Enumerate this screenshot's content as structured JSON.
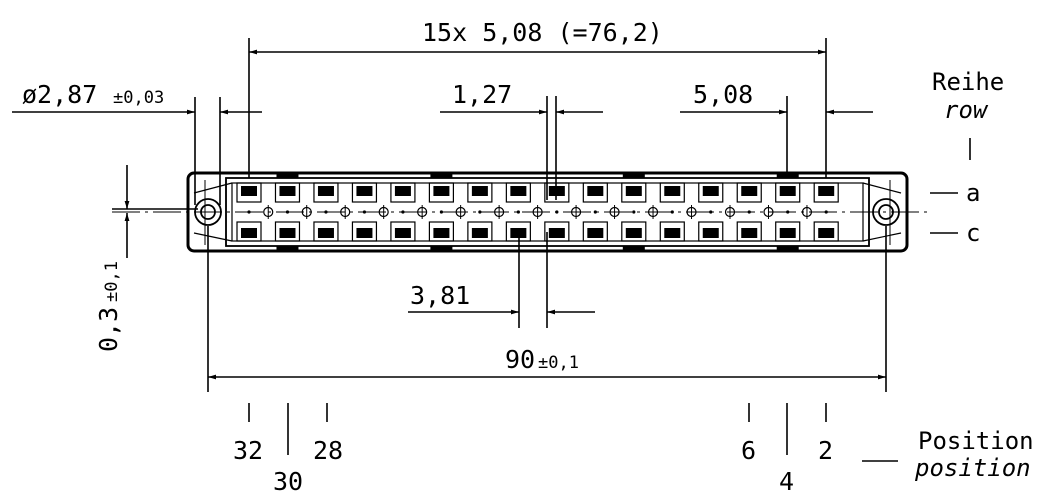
{
  "dimensions": {
    "pitch_total": "15x 5,08 (=76,2)",
    "hole_diameter": "ø2,87",
    "hole_tolerance": "±0,03",
    "offset_small": "1,27",
    "pitch": "5,08",
    "row_offset": "3,81",
    "hole_spacing": "90",
    "hole_spacing_tolerance": "±0,1",
    "vertical_offset": "0,3",
    "vertical_offset_tolerance": "±0,1"
  },
  "labels": {
    "row_de": "Reihe",
    "row_en": "row",
    "row_a": "a",
    "row_c": "c",
    "position_de": "Position",
    "position_en": "position"
  },
  "positions": {
    "left_top_a": "32",
    "left_top_b": "28",
    "left_bottom": "30",
    "right_top_a": "6",
    "right_top_b": "2",
    "right_bottom": "4"
  }
}
